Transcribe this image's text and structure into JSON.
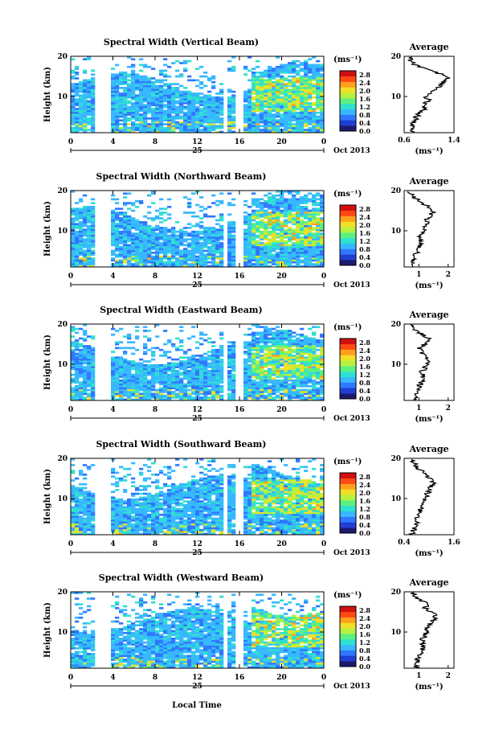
{
  "xlabel": "Local Time",
  "date_label": "Oct 2013",
  "day_label": "25",
  "average_title": "Average",
  "unit_label": "(ms⁻¹)",
  "ylabel": "Height (km)",
  "colorbar": {
    "ticks": [
      "2.8",
      "2.4",
      "2.0",
      "1.6",
      "1.2",
      "0.8",
      "0.4",
      "0.0"
    ],
    "colors": [
      "#1a1a6e",
      "#1f3fd0",
      "#2f78ff",
      "#37b8ff",
      "#2fe0d0",
      "#5cf080",
      "#b8f040",
      "#f0e028",
      "#ffa01c",
      "#ff4a14",
      "#d01010"
    ]
  },
  "chart_data": [
    {
      "type": "heatmap",
      "title": "Spectral Width (Vertical Beam)",
      "xlabel": "Local Time",
      "ylabel": "Height (km)",
      "x_ticks": [
        "0",
        "4",
        "8",
        "12",
        "16",
        "20",
        "0"
      ],
      "y_ticks": [
        "20",
        "10"
      ],
      "xlim": [
        0,
        24
      ],
      "ylim": [
        1,
        20
      ],
      "colorbar_range": [
        0.0,
        3.0
      ],
      "data_gaps_hours": [
        [
          2.4,
          3.8
        ],
        [
          6.0,
          6.2
        ],
        [
          10.7,
          10.8
        ],
        [
          14.6,
          14.8
        ],
        [
          15.7,
          16.2
        ],
        [
          18.6,
          18.8
        ]
      ],
      "average_profile": {
        "title": "Average",
        "xlabel": "(ms⁻¹)",
        "x_ticks": [
          "0.6",
          "1.4"
        ],
        "y_ticks": [
          "20",
          "10"
        ],
        "xlim": [
          0.6,
          1.4
        ],
        "height_km": [
          1,
          2,
          3,
          4,
          5,
          6,
          7,
          8,
          9,
          10,
          11,
          12,
          13,
          14,
          15,
          16,
          17,
          18,
          19,
          20
        ],
        "values": [
          0.75,
          0.72,
          0.73,
          0.78,
          0.8,
          0.85,
          0.95,
          0.9,
          1.0,
          0.95,
          1.05,
          1.15,
          1.2,
          1.25,
          1.3,
          1.1,
          0.9,
          0.75,
          0.7,
          0.68
        ]
      }
    },
    {
      "type": "heatmap",
      "title": "Spectral Width (Northward Beam)",
      "xlabel": "Local Time",
      "ylabel": "Height (km)",
      "x_ticks": [
        "0",
        "4",
        "8",
        "12",
        "16",
        "20",
        "0"
      ],
      "y_ticks": [
        "20",
        "10"
      ],
      "xlim": [
        0,
        24
      ],
      "ylim": [
        1,
        20
      ],
      "colorbar_range": [
        0.0,
        3.0
      ],
      "data_gaps_hours": [
        [
          2.4,
          3.8
        ],
        [
          6.0,
          6.2
        ],
        [
          10.7,
          10.8
        ],
        [
          14.6,
          14.8
        ],
        [
          15.7,
          16.2
        ],
        [
          18.6,
          18.8
        ]
      ],
      "average_profile": {
        "title": "Average",
        "xlabel": "(ms⁻¹)",
        "x_ticks": [
          "1",
          "2"
        ],
        "y_ticks": [
          "20",
          "10"
        ],
        "xlim": [
          0.5,
          2.2
        ],
        "height_km": [
          1,
          2,
          3,
          4,
          5,
          6,
          7,
          8,
          9,
          10,
          11,
          12,
          13,
          14,
          15,
          16,
          17,
          18,
          19,
          20
        ],
        "values": [
          0.8,
          0.8,
          0.85,
          0.9,
          0.95,
          1.0,
          1.05,
          1.0,
          1.1,
          1.15,
          1.2,
          1.25,
          1.3,
          1.4,
          1.5,
          1.3,
          1.1,
          0.9,
          0.75,
          0.7
        ]
      }
    },
    {
      "type": "heatmap",
      "title": "Spectral Width (Eastward Beam)",
      "xlabel": "Local Time",
      "ylabel": "Height (km)",
      "x_ticks": [
        "0",
        "4",
        "8",
        "12",
        "16",
        "20",
        "0"
      ],
      "y_ticks": [
        "20",
        "10"
      ],
      "xlim": [
        0,
        24
      ],
      "ylim": [
        1,
        20
      ],
      "colorbar_range": [
        0.0,
        3.0
      ],
      "data_gaps_hours": [
        [
          2.4,
          3.8
        ],
        [
          6.0,
          6.2
        ],
        [
          10.7,
          10.8
        ],
        [
          14.6,
          14.8
        ],
        [
          15.7,
          16.2
        ],
        [
          18.6,
          18.8
        ]
      ],
      "average_profile": {
        "title": "Average",
        "xlabel": "(ms⁻¹)",
        "x_ticks": [
          "1",
          "2"
        ],
        "y_ticks": [
          "20",
          "10"
        ],
        "xlim": [
          0.5,
          2.2
        ],
        "height_km": [
          1,
          2,
          3,
          4,
          5,
          6,
          7,
          8,
          9,
          10,
          11,
          12,
          13,
          14,
          15,
          16,
          17,
          18,
          19,
          20
        ],
        "values": [
          0.9,
          0.85,
          0.9,
          1.0,
          1.05,
          1.1,
          1.2,
          1.1,
          1.2,
          1.3,
          1.35,
          1.2,
          1.1,
          1.0,
          1.2,
          1.4,
          1.2,
          1.0,
          0.8,
          0.75
        ]
      }
    },
    {
      "type": "heatmap",
      "title": "Spectral Width (Southward Beam)",
      "xlabel": "Local Time",
      "ylabel": "Height (km)",
      "x_ticks": [
        "0",
        "4",
        "8",
        "12",
        "16",
        "20",
        "0"
      ],
      "y_ticks": [
        "20",
        "10"
      ],
      "xlim": [
        0,
        24
      ],
      "ylim": [
        1,
        20
      ],
      "colorbar_range": [
        0.0,
        3.0
      ],
      "data_gaps_hours": [
        [
          2.4,
          3.8
        ],
        [
          6.0,
          6.2
        ],
        [
          10.7,
          10.8
        ],
        [
          14.6,
          14.8
        ],
        [
          15.7,
          16.2
        ],
        [
          18.6,
          18.8
        ]
      ],
      "average_profile": {
        "title": "Average",
        "xlabel": "(ms⁻¹)",
        "x_ticks": [
          "0.4",
          "1.6"
        ],
        "y_ticks": [
          "20",
          "10"
        ],
        "xlim": [
          0.4,
          1.6
        ],
        "height_km": [
          1,
          2,
          3,
          4,
          5,
          6,
          7,
          8,
          9,
          10,
          11,
          12,
          13,
          14,
          15,
          16,
          17,
          18,
          19,
          20
        ],
        "values": [
          0.6,
          0.62,
          0.65,
          0.7,
          0.68,
          0.75,
          0.8,
          0.78,
          0.85,
          0.9,
          0.95,
          1.0,
          1.05,
          1.1,
          1.0,
          0.9,
          0.8,
          0.7,
          0.62,
          0.6
        ]
      }
    },
    {
      "type": "heatmap",
      "title": "Spectral Width (Westward Beam)",
      "xlabel": "Local Time",
      "ylabel": "Height (km)",
      "x_ticks": [
        "0",
        "4",
        "8",
        "12",
        "16",
        "20",
        "0"
      ],
      "y_ticks": [
        "20",
        "10"
      ],
      "xlim": [
        0,
        24
      ],
      "ylim": [
        1,
        20
      ],
      "colorbar_range": [
        0.0,
        3.0
      ],
      "data_gaps_hours": [
        [
          2.4,
          3.8
        ],
        [
          6.0,
          6.2
        ],
        [
          10.7,
          10.8
        ],
        [
          14.6,
          14.8
        ],
        [
          15.7,
          16.2
        ],
        [
          18.6,
          18.8
        ]
      ],
      "average_profile": {
        "title": "Average",
        "xlabel": "(ms⁻¹)",
        "x_ticks": [
          "1",
          "2"
        ],
        "y_ticks": [
          "20",
          "10"
        ],
        "xlim": [
          0.5,
          2.2
        ],
        "height_km": [
          1,
          2,
          3,
          4,
          5,
          6,
          7,
          8,
          9,
          10,
          11,
          12,
          13,
          14,
          15,
          16,
          17,
          18,
          19,
          20
        ],
        "values": [
          0.9,
          0.92,
          0.95,
          1.0,
          1.05,
          1.1,
          1.15,
          1.1,
          1.2,
          1.25,
          1.3,
          1.4,
          1.5,
          1.6,
          1.4,
          1.2,
          1.3,
          1.0,
          0.85,
          0.8
        ]
      }
    }
  ]
}
